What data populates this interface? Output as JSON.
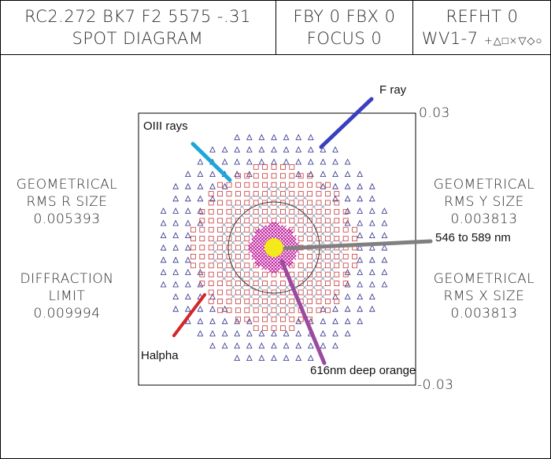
{
  "header": {
    "title_line1": "RC2.272 BK7 F2 5575 -.31",
    "title_line2": "SPOT DIAGRAM",
    "field_line1": "FBY 0 FBX 0",
    "field_line2": "FOCUS 0",
    "ref_line1": "REFHT 0",
    "ref_line2": "WV1-7",
    "ref_symbols": "+△□×▽◇○"
  },
  "left_stats": {
    "rms_r_line1": "GEOMETRICAL",
    "rms_r_line2": "RMS R SIZE",
    "rms_r_value": "0.005393",
    "diff_line1": "DIFFRACTION",
    "diff_line2": "LIMIT",
    "diff_value": "0.009994"
  },
  "right_stats": {
    "rms_y_line1": "GEOMETRICAL",
    "rms_y_line2": "RMS Y SIZE",
    "rms_y_value": "0.003813",
    "rms_x_line1": "GEOMETRICAL",
    "rms_x_line2": "RMS X SIZE",
    "rms_x_value": "0.003813"
  },
  "plot": {
    "y_max_label": "0.03",
    "y_min_label": "-0.03",
    "range": [
      -0.03,
      0.03
    ],
    "diffraction_limit": 0.009994
  },
  "annotations": {
    "f_ray": "F ray",
    "oiii": "OIII rays",
    "nm546": "546 to 589 nm",
    "halpha": "Halpha",
    "nm616": "616nm deep orange"
  },
  "colors": {
    "f_ray": "#3a3fbf",
    "oiii": "#1ea6d8",
    "nm546": "#808080",
    "halpha": "#d42626",
    "nm616": "#9b4aa0",
    "triangles": "#2b2b8a",
    "squares": "#c43a3a",
    "core": "#c01d9c",
    "center": "#f2ea1c"
  }
}
